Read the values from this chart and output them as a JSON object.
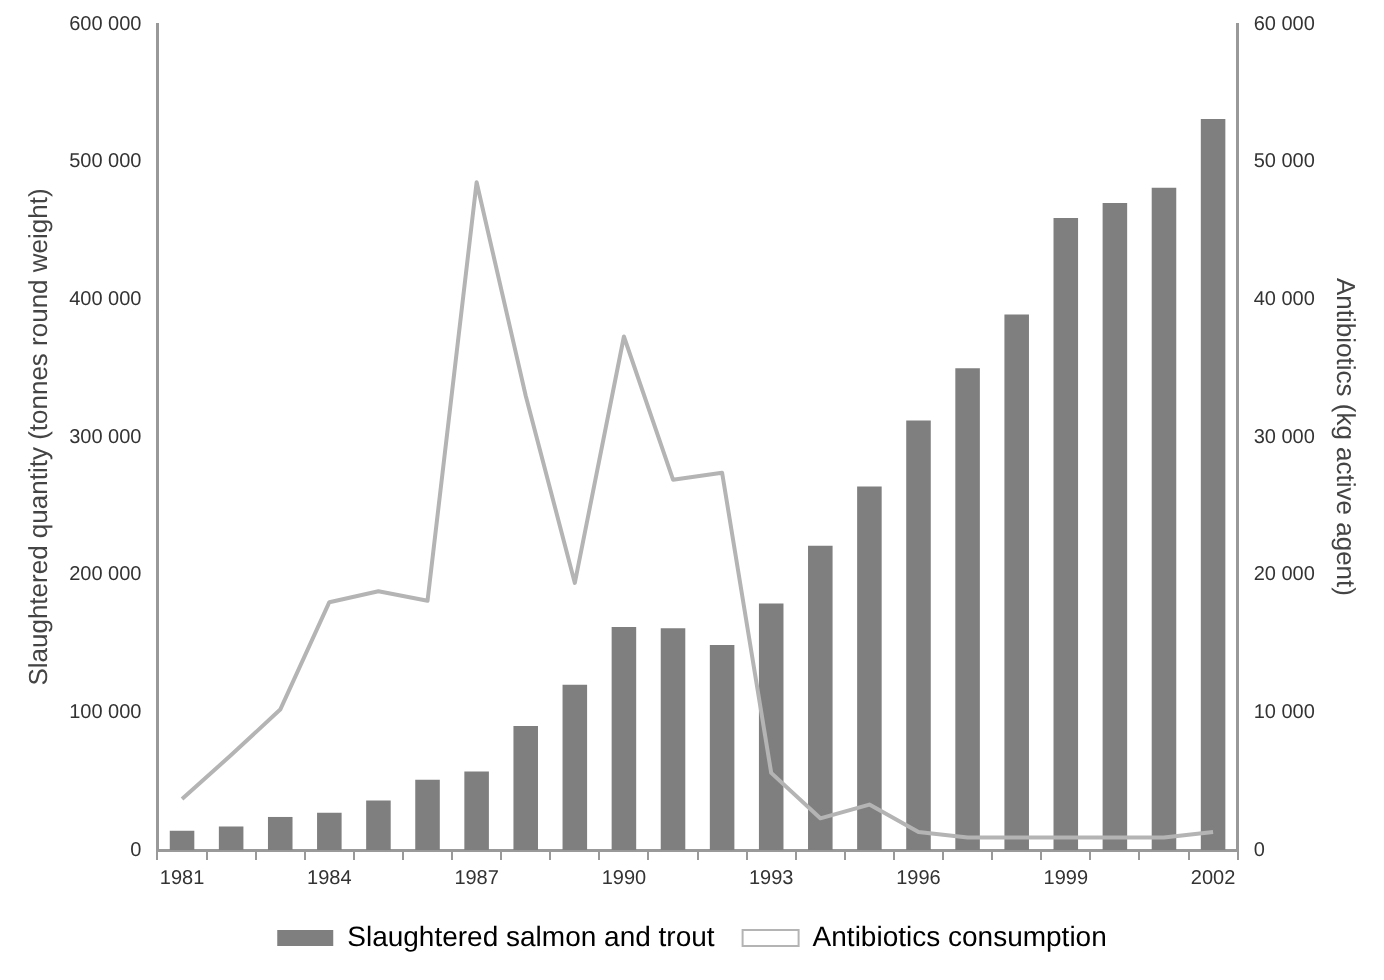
{
  "chart_data": {
    "type": "bar",
    "categories": [
      "1981",
      null,
      null,
      "1984",
      null,
      null,
      "1987",
      null,
      null,
      "1990",
      null,
      null,
      "1993",
      null,
      null,
      "1996",
      null,
      null,
      "1999",
      null,
      null,
      "2002"
    ],
    "series": [
      {
        "name": "Slaughtered salmon and trout",
        "color": "#7f7f7f",
        "values": [
          14000,
          17000,
          24000,
          27000,
          36000,
          51000,
          57000,
          90000,
          120000,
          162000,
          161000,
          149000,
          179000,
          221000,
          264000,
          312000,
          350000,
          389000,
          459000,
          470000,
          481000,
          531000
        ]
      },
      {
        "name": "Antibiotics consumption",
        "type": "line",
        "axis": "y2",
        "color": "#b4b4b4",
        "values": [
          3700,
          6900,
          10200,
          18000,
          18800,
          18100,
          48500,
          33000,
          19400,
          37300,
          26900,
          27400,
          5600,
          2300,
          3300,
          1300,
          900,
          900,
          900,
          900,
          900,
          1300
        ]
      }
    ],
    "ylabel": "Slaughtered quantity (tonnes round weight)",
    "y2label": "Antibiotics (kg active agent)",
    "ylim": [
      0,
      600000
    ],
    "yticks": [
      {
        "value": 0,
        "label": "0"
      },
      {
        "value": 100000,
        "label": "100 000"
      },
      {
        "value": 200000,
        "label": "200 000"
      },
      {
        "value": 300000,
        "label": "300 000"
      },
      {
        "value": 400000,
        "label": "400 000"
      },
      {
        "value": 500000,
        "label": "500 000"
      },
      {
        "value": 600000,
        "label": "600 000"
      }
    ],
    "y2lim": [
      0,
      60000
    ],
    "y2ticks": [
      {
        "value": 0,
        "label": "0"
      },
      {
        "value": 10000,
        "label": "10 000"
      },
      {
        "value": 20000,
        "label": "20 000"
      },
      {
        "value": 30000,
        "label": "30 000"
      },
      {
        "value": 40000,
        "label": "40 000"
      },
      {
        "value": 50000,
        "label": "50 000"
      },
      {
        "value": 60000,
        "label": "60 000"
      }
    ],
    "grid": false,
    "legend": "bottom",
    "marker": "none"
  }
}
